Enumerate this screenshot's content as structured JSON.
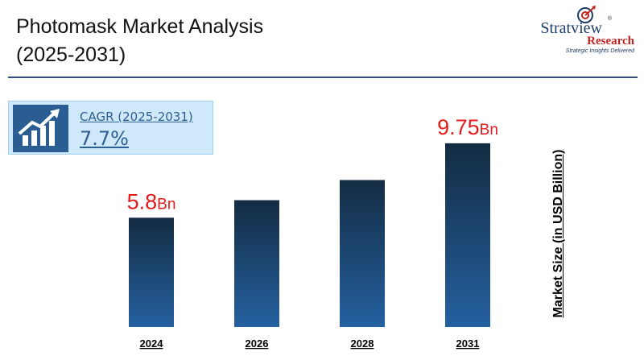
{
  "header": {
    "title_line1": "Photomask Market Analysis",
    "title_line2": "(2025-2031)"
  },
  "logo": {
    "name": "Stratview",
    "registered_mark": "®",
    "research": "Research",
    "tagline": "Strategic Insights Delivered"
  },
  "cagr": {
    "icon": "growth-chart-icon",
    "label": "CAGR (2025-2031)",
    "value": "7.7%"
  },
  "colors": {
    "bar_top": "#132c42",
    "bar_bottom": "#2561a0",
    "value_label": "#e31b1b",
    "divider": "#2e4f7c"
  },
  "chart_data": {
    "type": "bar",
    "categories": [
      "2024",
      "2026",
      "2028",
      "2031"
    ],
    "values": [
      5.8,
      6.73,
      7.8,
      9.75
    ],
    "data_labels": [
      {
        "index": 0,
        "number": "5.8",
        "unit": "Bn"
      },
      {
        "index": 3,
        "number": "9.75",
        "unit": "Bn"
      }
    ],
    "ylabel": "Market Size (in USD Billion)",
    "xlabel": "",
    "ylim": [
      0,
      10.6
    ],
    "grid": false,
    "legend": "none"
  }
}
